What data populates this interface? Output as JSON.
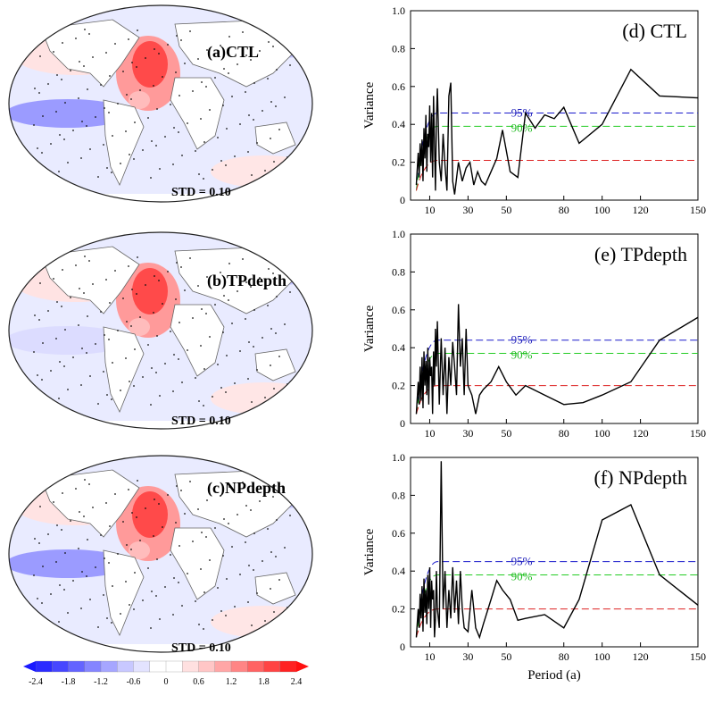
{
  "maps": [
    {
      "id": "a",
      "label": "(a)CTL",
      "std_text": "STD = 0.10"
    },
    {
      "id": "b",
      "label": "(b)TPdepth",
      "std_text": "STD = 0.10"
    },
    {
      "id": "c",
      "label": "(c)NPdepth",
      "std_text": "STD = 0.10"
    }
  ],
  "colorbar": {
    "ticks": [
      "-2.4",
      "-1.8",
      "-1.2",
      "-0.6",
      "0",
      "0.6",
      "1.2",
      "1.8",
      "2.4"
    ],
    "colors": [
      "#2b2bff",
      "#4646ff",
      "#6464ff",
      "#8585ff",
      "#a6a6ff",
      "#c8c8ff",
      "#e3e3ff",
      "#ffffff",
      "#ffffff",
      "#ffe0e0",
      "#ffc6c6",
      "#ffa6a6",
      "#ff8585",
      "#ff6363",
      "#ff4444",
      "#ff2222"
    ]
  },
  "chart_data": [
    {
      "type": "line",
      "title": "(d) CTL",
      "xlabel": "",
      "ylabel": "Variance",
      "xlim": [
        0,
        150
      ],
      "ylim": [
        0,
        1.0
      ],
      "xticks": [
        10,
        30,
        50,
        80,
        100,
        120,
        150
      ],
      "yticks": [
        0,
        0.2,
        0.4,
        0.6,
        0.8,
        1.0
      ],
      "conf_labels": {
        "c95": "95%",
        "c90": "90%"
      },
      "levels": {
        "c95": 0.46,
        "c90": 0.39,
        "red": 0.21
      },
      "series": [
        {
          "x": [
            3,
            4,
            4.5,
            5,
            5.5,
            6,
            6.5,
            7,
            7.5,
            8,
            8.5,
            9,
            9.5,
            10,
            10.5,
            11,
            11.5,
            12,
            12.5,
            13,
            13.5,
            14,
            15,
            16,
            17,
            18,
            19,
            20,
            21,
            22,
            23,
            25,
            27,
            29,
            31,
            33,
            35,
            37,
            39,
            42,
            45,
            48,
            52,
            56,
            60,
            65,
            70,
            75,
            80,
            88,
            100,
            115,
            130,
            150
          ],
          "y": [
            0.08,
            0.25,
            0.12,
            0.3,
            0.18,
            0.32,
            0.1,
            0.38,
            0.22,
            0.45,
            0.15,
            0.35,
            0.28,
            0.5,
            0.2,
            0.46,
            0.12,
            0.55,
            0.3,
            0.05,
            0.42,
            0.59,
            0.2,
            0.1,
            0.35,
            0.18,
            0.05,
            0.55,
            0.62,
            0.1,
            0.03,
            0.2,
            0.1,
            0.17,
            0.2,
            0.08,
            0.15,
            0.1,
            0.08,
            0.15,
            0.22,
            0.37,
            0.15,
            0.12,
            0.46,
            0.38,
            0.45,
            0.43,
            0.49,
            0.3,
            0.4,
            0.69,
            0.55,
            0.54
          ]
        }
      ]
    },
    {
      "type": "line",
      "title": "(e) TPdepth",
      "xlabel": "",
      "ylabel": "Variance",
      "xlim": [
        0,
        150
      ],
      "ylim": [
        0,
        1.0
      ],
      "xticks": [
        10,
        30,
        50,
        80,
        100,
        120,
        150
      ],
      "yticks": [
        0,
        0.2,
        0.4,
        0.6,
        0.8,
        1.0
      ],
      "conf_labels": {
        "c95": "95%",
        "c90": "90%"
      },
      "levels": {
        "c95": 0.44,
        "c90": 0.37,
        "red": 0.2
      },
      "series": [
        {
          "x": [
            3,
            4,
            4.5,
            5,
            5.5,
            6,
            6.5,
            7,
            7.5,
            8,
            8.5,
            9,
            9.5,
            10,
            10.5,
            11,
            11.5,
            12,
            12.5,
            13,
            13.5,
            14,
            15,
            16,
            17,
            18,
            19,
            20,
            21,
            22,
            23,
            24,
            25,
            26,
            27,
            28,
            29,
            30,
            32,
            34,
            36,
            38,
            42,
            46,
            50,
            55,
            60,
            70,
            80,
            90,
            100,
            115,
            130,
            150
          ],
          "y": [
            0.05,
            0.22,
            0.1,
            0.3,
            0.12,
            0.35,
            0.08,
            0.38,
            0.2,
            0.33,
            0.15,
            0.4,
            0.1,
            0.35,
            0.25,
            0.3,
            0.05,
            0.38,
            0.2,
            0.5,
            0.3,
            0.54,
            0.1,
            0.45,
            0.15,
            0.4,
            0.05,
            0.35,
            0.2,
            0.43,
            0.3,
            0.15,
            0.63,
            0.3,
            0.45,
            0.15,
            0.5,
            0.2,
            0.15,
            0.05,
            0.15,
            0.18,
            0.22,
            0.3,
            0.22,
            0.15,
            0.2,
            0.15,
            0.1,
            0.11,
            0.15,
            0.22,
            0.44,
            0.56
          ]
        }
      ]
    },
    {
      "type": "line",
      "title": "(f) NPdepth",
      "xlabel": "Period (a)",
      "ylabel": "Variance",
      "xlim": [
        0,
        150
      ],
      "ylim": [
        0,
        1.0
      ],
      "xticks": [
        10,
        30,
        50,
        80,
        100,
        120,
        150
      ],
      "yticks": [
        0,
        0.2,
        0.4,
        0.6,
        0.8,
        1.0
      ],
      "conf_labels": {
        "c95": "95%",
        "c90": "90%"
      },
      "levels": {
        "c95": 0.45,
        "c90": 0.38,
        "red": 0.2
      },
      "series": [
        {
          "x": [
            3,
            4,
            4.5,
            5,
            5.5,
            6,
            6.5,
            7,
            7.5,
            8,
            8.5,
            9,
            9.5,
            10,
            10.5,
            11,
            11.5,
            12,
            12.5,
            13,
            13.5,
            14,
            15,
            16,
            17,
            18,
            19,
            20,
            21,
            22,
            23,
            24,
            25,
            26,
            27,
            28,
            30,
            32,
            34,
            36,
            38,
            42,
            45,
            48,
            52,
            56,
            60,
            70,
            80,
            88,
            100,
            115,
            130,
            150
          ],
          "y": [
            0.05,
            0.2,
            0.1,
            0.28,
            0.15,
            0.32,
            0.08,
            0.36,
            0.18,
            0.3,
            0.12,
            0.38,
            0.2,
            0.42,
            0.1,
            0.35,
            0.25,
            0.3,
            0.05,
            0.15,
            0.4,
            0.2,
            0.1,
            0.98,
            0.2,
            0.4,
            0.1,
            0.3,
            0.15,
            0.42,
            0.18,
            0.35,
            0.12,
            0.4,
            0.2,
            0.1,
            0.08,
            0.3,
            0.1,
            0.05,
            0.12,
            0.25,
            0.35,
            0.3,
            0.25,
            0.14,
            0.15,
            0.17,
            0.1,
            0.25,
            0.67,
            0.75,
            0.38,
            0.22
          ]
        }
      ]
    }
  ]
}
